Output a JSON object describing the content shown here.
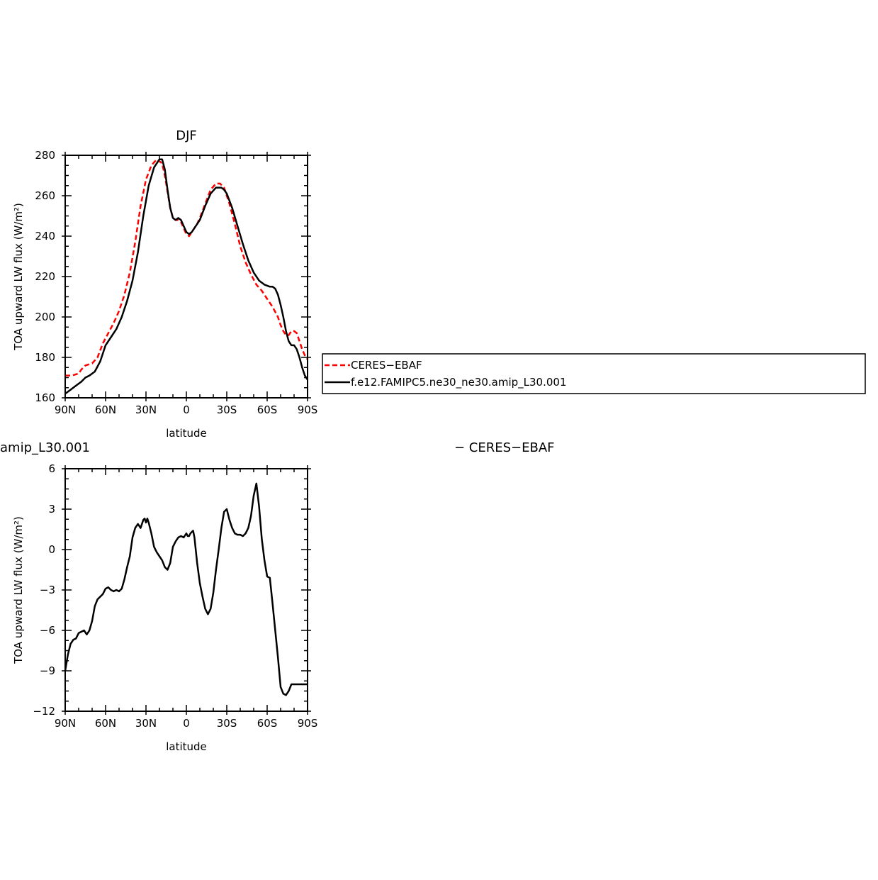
{
  "colors": {
    "ceres": "#ff0000",
    "model": "#000000"
  },
  "chart_data": [
    {
      "type": "line",
      "title": "DJF",
      "xlabel": "latitude",
      "ylabel": "TOA upward LW flux (W/m²)",
      "xlim": [
        90,
        -90
      ],
      "ylim": [
        160,
        280
      ],
      "xticks": [
        90,
        60,
        30,
        0,
        -30,
        -60,
        -90
      ],
      "xtick_labels": [
        "90N",
        "60N",
        "30N",
        "0",
        "30S",
        "60S",
        "90S"
      ],
      "yticks": [
        160,
        180,
        200,
        220,
        240,
        260,
        280
      ],
      "ytick_labels": [
        "160",
        "180",
        "200",
        "220",
        "240",
        "260",
        "280"
      ],
      "legend": "right",
      "series": [
        {
          "name": "CERES−EBAF",
          "style": "dashed",
          "x": [
            90,
            85,
            80,
            78,
            75,
            70,
            66,
            62,
            58,
            54,
            50,
            46,
            42,
            38,
            34,
            30,
            26,
            22,
            18,
            16,
            14,
            12,
            10,
            8,
            6,
            4,
            2,
            0,
            -2,
            -4,
            -6,
            -8,
            -10,
            -14,
            -18,
            -22,
            -25,
            -28,
            -32,
            -36,
            -40,
            -44,
            -48,
            -52,
            -56,
            -60,
            -64,
            -68,
            -70,
            -72,
            -74,
            -76,
            -78,
            -80,
            -82,
            -84,
            -86,
            -88,
            -90
          ],
          "y": [
            171,
            171,
            172,
            174,
            176,
            177,
            180,
            187,
            192,
            197,
            203,
            211,
            222,
            237,
            255,
            268,
            275,
            278,
            276,
            270,
            262,
            254,
            249,
            248,
            248,
            247,
            244,
            241,
            240,
            242,
            244,
            246,
            249,
            256,
            263,
            266,
            266,
            264,
            256,
            246,
            235,
            227,
            221,
            216,
            213,
            209,
            205,
            200,
            196,
            193,
            191,
            191,
            193,
            193,
            192,
            188,
            184,
            181,
            179
          ]
        },
        {
          "name": "f.e12.FAMIPC5.ne30_ne30.amip_L30.001",
          "style": "solid",
          "x": [
            90,
            86,
            82,
            78,
            75,
            72,
            68,
            64,
            60,
            56,
            52,
            48,
            44,
            40,
            36,
            32,
            28,
            24,
            20,
            18,
            16,
            14,
            12,
            10,
            8,
            6,
            4,
            2,
            0,
            -2,
            -4,
            -6,
            -8,
            -10,
            -14,
            -18,
            -22,
            -26,
            -28,
            -30,
            -34,
            -38,
            -42,
            -46,
            -50,
            -54,
            -58,
            -62,
            -64,
            -66,
            -68,
            -70,
            -72,
            -74,
            -76,
            -78,
            -80,
            -82,
            -84,
            -86,
            -88,
            -90
          ],
          "y": [
            162,
            164,
            166,
            168,
            170,
            171,
            173,
            178,
            186,
            190,
            194,
            200,
            208,
            218,
            232,
            250,
            265,
            274,
            278,
            278,
            273,
            263,
            254,
            249,
            248,
            249,
            248,
            245,
            242,
            241,
            242,
            244,
            246,
            248,
            255,
            261,
            264,
            264,
            263,
            261,
            254,
            245,
            236,
            228,
            222,
            218,
            216,
            215,
            215,
            214,
            211,
            206,
            200,
            193,
            188,
            186,
            186,
            184,
            180,
            175,
            171,
            169
          ]
        }
      ]
    },
    {
      "type": "line",
      "title": "amip_L30.001",
      "title_right": "− CERES−EBAF",
      "xlabel": "latitude",
      "ylabel": "TOA upward LW flux (W/m²)",
      "xlim": [
        90,
        -90
      ],
      "ylim": [
        -12,
        6
      ],
      "xticks": [
        90,
        60,
        30,
        0,
        -30,
        -60,
        -90
      ],
      "xtick_labels": [
        "90N",
        "60N",
        "30N",
        "0",
        "30S",
        "60S",
        "90S"
      ],
      "yticks": [
        -12,
        -9,
        -6,
        -3,
        0,
        3,
        6
      ],
      "ytick_labels": [
        "−12",
        "−9",
        "−6",
        "−3",
        "0",
        "3",
        "6"
      ],
      "series": [
        {
          "style": "solid",
          "x": [
            90,
            88,
            86,
            84,
            82,
            80,
            78,
            76,
            74,
            72,
            70,
            68,
            66,
            64,
            62,
            60,
            58,
            56,
            54,
            52,
            50,
            48,
            46,
            44,
            42,
            40,
            38,
            36,
            34,
            32,
            31,
            30,
            29,
            28,
            26,
            24,
            22,
            20,
            18,
            16,
            14,
            12,
            10,
            8,
            6,
            4,
            2,
            0,
            -1,
            -2,
            -3,
            -4,
            -5,
            -6,
            -8,
            -10,
            -12,
            -14,
            -16,
            -18,
            -20,
            -22,
            -24,
            -26,
            -28,
            -30,
            -32,
            -34,
            -36,
            -38,
            -40,
            -42,
            -44,
            -46,
            -48,
            -50,
            -52,
            -54,
            -56,
            -58,
            -60,
            -62,
            -64,
            -66,
            -68,
            -70,
            -72,
            -74,
            -76,
            -78,
            -80,
            -82,
            -84,
            -86,
            -88,
            -89,
            -90
          ],
          "y": [
            -9.0,
            -7.8,
            -7.0,
            -6.7,
            -6.6,
            -6.2,
            -6.1,
            -6.0,
            -6.3,
            -6.0,
            -5.3,
            -4.2,
            -3.7,
            -3.5,
            -3.3,
            -2.9,
            -2.8,
            -3.0,
            -3.1,
            -3.0,
            -3.1,
            -2.9,
            -2.2,
            -1.3,
            -0.5,
            0.9,
            1.6,
            1.9,
            1.6,
            2.2,
            2.3,
            2.0,
            2.3,
            2.0,
            1.2,
            0.2,
            -0.2,
            -0.5,
            -0.8,
            -1.3,
            -1.5,
            -1.0,
            0.2,
            0.6,
            0.9,
            1.0,
            0.9,
            1.2,
            1.0,
            1.0,
            1.2,
            1.3,
            1.4,
            0.9,
            -1.0,
            -2.5,
            -3.5,
            -4.4,
            -4.8,
            -4.4,
            -3.2,
            -1.5,
            0.0,
            1.6,
            2.8,
            3.0,
            2.2,
            1.6,
            1.2,
            1.1,
            1.1,
            1.0,
            1.2,
            1.6,
            2.5,
            4.0,
            4.9,
            3.2,
            0.8,
            -0.8,
            -2.0,
            -2.1,
            -4.0,
            -6.0,
            -8.0,
            -10.2,
            -10.7,
            -10.8,
            -10.5,
            -10.0,
            -10.0,
            -10.0,
            -10.0,
            -10.0,
            -10.0,
            -10.0,
            -10.0
          ]
        }
      ]
    }
  ]
}
